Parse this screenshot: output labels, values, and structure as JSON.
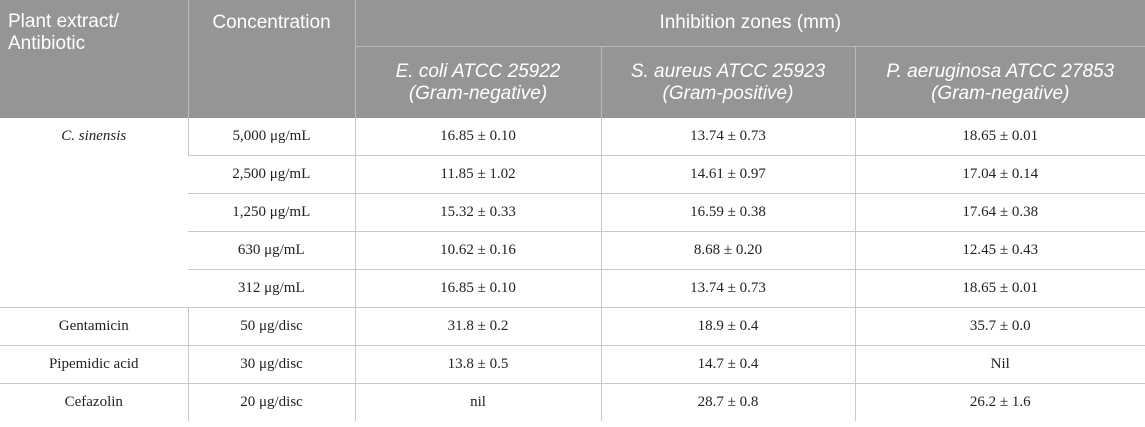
{
  "header": {
    "plant_label_line1": "Plant extract/",
    "plant_label_line2": "Antibiotic",
    "concentration_label": "Concentration",
    "zones_label": "Inhibition zones (mm)",
    "organisms": [
      {
        "name": "E. coli ATCC 25922",
        "gram": "(Gram-negative)"
      },
      {
        "name": "S. aureus ATCC 25923",
        "gram": "(Gram-positive)"
      },
      {
        "name": "P. aeruginosa ATCC 27853",
        "gram": "(Gram-negative)"
      }
    ]
  },
  "extract": {
    "name": "C. sinensis",
    "rows": [
      {
        "conc": "5,000 μg/mL",
        "ecoli": "16.85 ± 0.10",
        "saureus": "13.74 ± 0.73",
        "paeruginosa": "18.65 ± 0.01"
      },
      {
        "conc": "2,500 μg/mL",
        "ecoli": "11.85 ± 1.02",
        "saureus": "14.61 ± 0.97",
        "paeruginosa": "17.04 ± 0.14"
      },
      {
        "conc": "1,250 μg/mL",
        "ecoli": "15.32 ± 0.33",
        "saureus": "16.59 ± 0.38",
        "paeruginosa": "17.64 ± 0.38"
      },
      {
        "conc": "630 μg/mL",
        "ecoli": "10.62 ± 0.16",
        "saureus": "8.68 ± 0.20",
        "paeruginosa": "12.45 ± 0.43"
      },
      {
        "conc": "312 μg/mL",
        "ecoli": "16.85 ± 0.10",
        "saureus": "13.74 ± 0.73",
        "paeruginosa": "18.65 ± 0.01"
      }
    ]
  },
  "antibiotics": [
    {
      "name": "Gentamicin",
      "conc": "50 μg/disc",
      "ecoli": "31.8 ± 0.2",
      "saureus": "18.9 ± 0.4",
      "paeruginosa": "35.7 ± 0.0"
    },
    {
      "name": "Pipemidic acid",
      "conc": "30 μg/disc",
      "ecoli": "13.8 ± 0.5",
      "saureus": "14.7 ± 0.4",
      "paeruginosa": "Nil"
    },
    {
      "name": "Cefazolin",
      "conc": "20 μg/disc",
      "ecoli": "nil",
      "saureus": "28.7 ± 0.8",
      "paeruginosa": "26.2 ± 1.6"
    }
  ]
}
